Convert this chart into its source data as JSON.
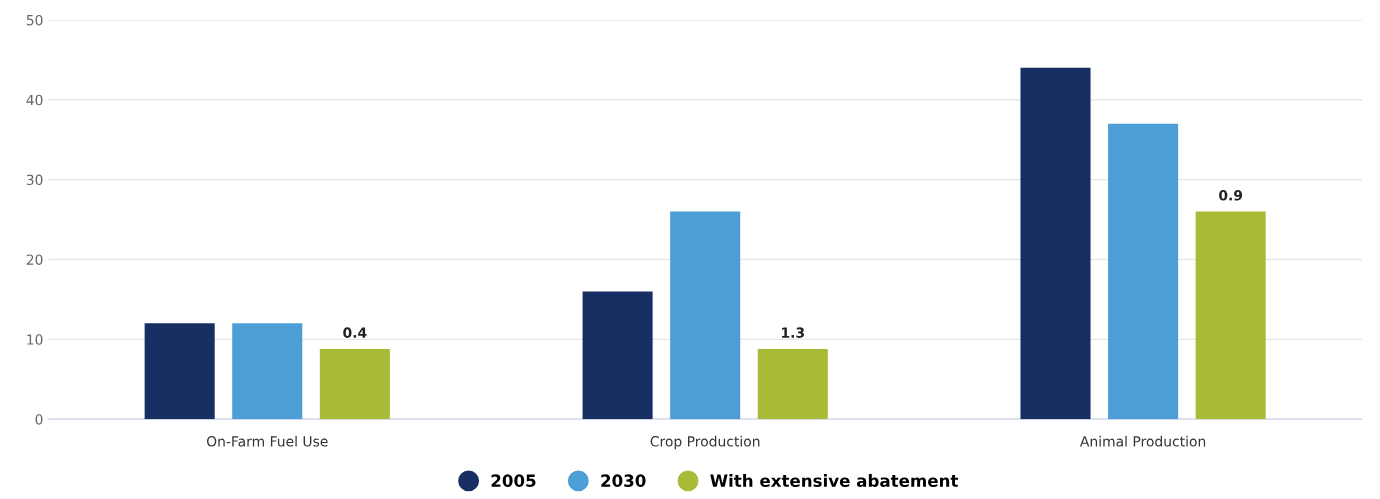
{
  "chart_data": {
    "type": "bar",
    "categories": [
      "On-Farm Fuel Use",
      "Crop Production",
      "Animal Production"
    ],
    "series": [
      {
        "name": "2005",
        "color": "#182f64",
        "values": [
          12,
          16,
          44
        ]
      },
      {
        "name": "2030",
        "color": "#4b9fd5",
        "values": [
          12,
          26,
          37
        ]
      },
      {
        "name": "With extensive abatement",
        "color": "#a9bb37",
        "values": [
          8.8,
          8.8,
          26
        ]
      }
    ],
    "annotations": [
      "0.4",
      "1.3",
      "0.9"
    ],
    "ylim": [
      0,
      50
    ],
    "yticks": [
      0,
      10,
      20,
      30,
      40,
      50
    ],
    "grid": "y",
    "legend": "bottom"
  }
}
